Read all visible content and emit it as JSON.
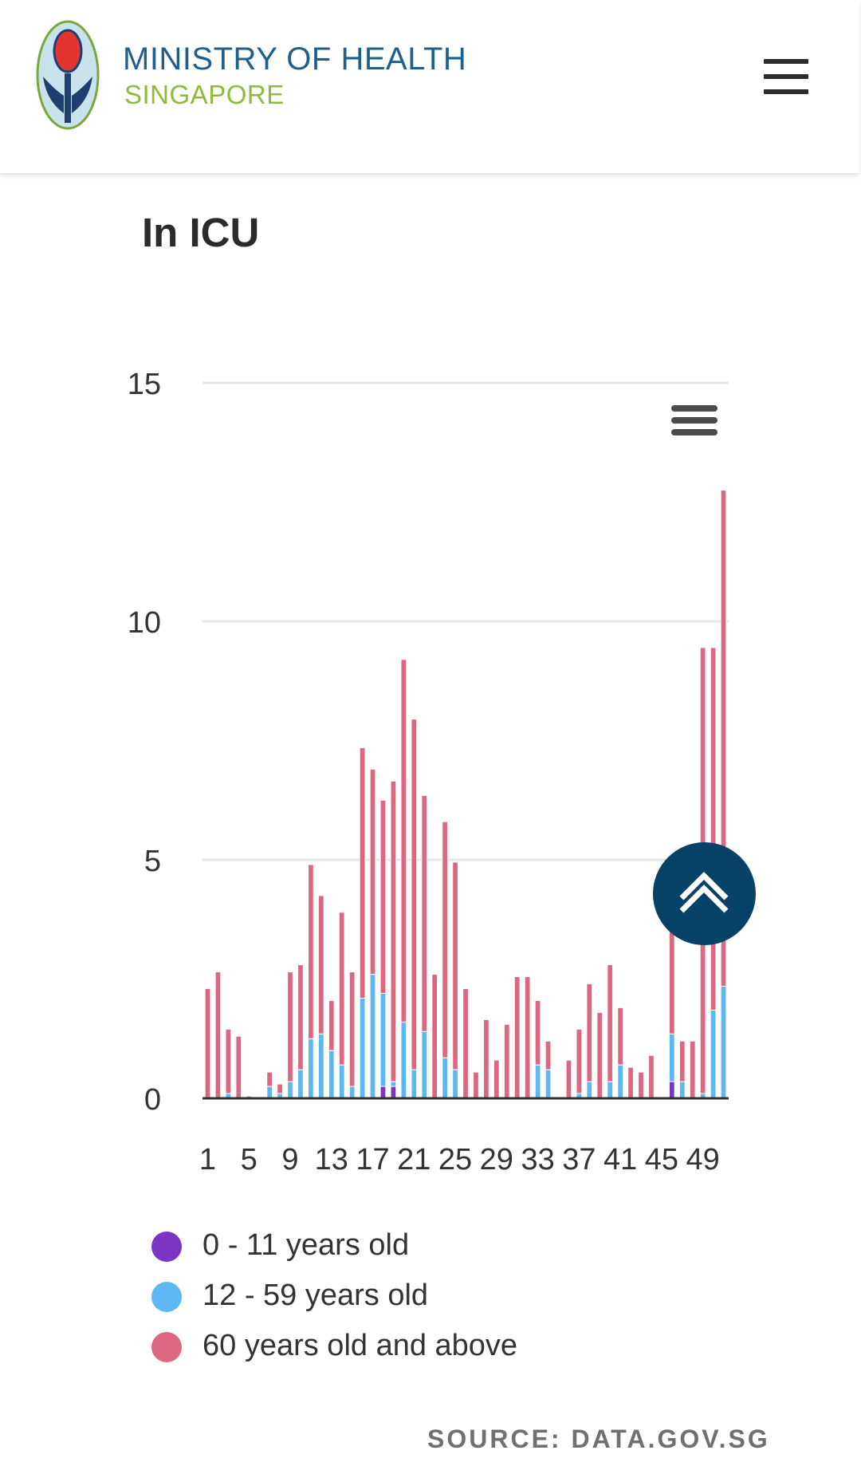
{
  "header": {
    "logo_line1": "MINISTRY OF HEALTH",
    "logo_line2": "SINGAPORE",
    "menu_icon": "hamburger-icon"
  },
  "page": {
    "title": "In ICU",
    "source": "SOURCE: DATA.GOV.SG"
  },
  "colors": {
    "series_0_11": "#7b35c2",
    "series_12_59": "#5cb8f2",
    "series_60_plus": "#dd6680",
    "gridline": "#e6e6e6",
    "axis": "#333333",
    "scroll_button": "#064166",
    "logo_blue": "#1f5f8b",
    "logo_green": "#8dbb3c"
  },
  "controls": {
    "chart_menu_icon": "chart-context-menu-icon",
    "scroll_top_icon": "double-chevron-up-icon"
  },
  "chart_data": {
    "type": "bar",
    "stacked": true,
    "title": "",
    "xlabel": "",
    "ylabel": "",
    "ylim": [
      0,
      15
    ],
    "y_ticks": [
      0,
      5,
      10,
      15
    ],
    "x_tick_labels": [
      "1",
      "5",
      "9",
      "13",
      "17",
      "21",
      "25",
      "29",
      "33",
      "37",
      "41",
      "45",
      "49"
    ],
    "x_tick_every": 4,
    "grid": true,
    "legend_position": "bottom-left",
    "categories": [
      "1",
      "2",
      "3",
      "4",
      "5",
      "6",
      "7",
      "8",
      "9",
      "10",
      "11",
      "12",
      "13",
      "14",
      "15",
      "16",
      "17",
      "18",
      "19",
      "20",
      "21",
      "22",
      "23",
      "24",
      "25",
      "26",
      "27",
      "28",
      "29",
      "30",
      "31",
      "32",
      "33",
      "34",
      "35",
      "36",
      "37",
      "38",
      "39",
      "40",
      "41",
      "42",
      "43",
      "44",
      "45",
      "46",
      "47",
      "48",
      "49",
      "50",
      "51"
    ],
    "series": [
      {
        "name": "0 - 11 years old",
        "values": [
          0,
          0,
          0,
          0,
          0,
          0,
          0,
          0,
          0,
          0,
          0,
          0,
          0,
          0,
          0,
          0,
          0,
          0.25,
          0.25,
          0,
          0,
          0,
          0,
          0,
          0,
          0,
          0,
          0,
          0,
          0,
          0,
          0,
          0,
          0,
          0,
          0,
          0,
          0,
          0,
          0,
          0,
          0,
          0,
          0,
          0,
          0.35,
          0,
          0,
          0,
          0,
          0
        ]
      },
      {
        "name": "12 - 59 years old",
        "values": [
          0,
          0,
          0.1,
          0,
          0.05,
          0,
          0.25,
          0.1,
          0.35,
          0.6,
          1.25,
          1.35,
          1.0,
          0.7,
          0.25,
          2.1,
          2.6,
          1.95,
          0.1,
          1.6,
          0.6,
          1.4,
          0,
          0.85,
          0.6,
          0,
          0,
          0,
          0,
          0,
          0,
          0,
          0.7,
          0.6,
          0,
          0,
          0.1,
          0.35,
          0,
          0.35,
          0.7,
          0,
          0,
          0,
          0,
          1.0,
          0.35,
          0,
          0.1,
          1.85,
          2.35
        ]
      },
      {
        "name": "60 years old and above",
        "values": [
          2.3,
          2.65,
          1.35,
          1.3,
          0,
          0,
          0.3,
          0.2,
          2.3,
          2.2,
          3.65,
          2.9,
          1.05,
          3.2,
          2.4,
          5.25,
          4.3,
          4.05,
          6.3,
          7.6,
          7.35,
          4.95,
          2.6,
          4.95,
          4.35,
          2.3,
          0.55,
          1.65,
          0.8,
          1.55,
          2.55,
          2.55,
          1.35,
          0.6,
          0,
          0.8,
          1.35,
          2.05,
          1.8,
          2.45,
          1.2,
          0.65,
          0.55,
          0.9,
          0,
          2.3,
          0.85,
          1.2,
          9.35,
          7.6,
          10.4
        ]
      }
    ]
  },
  "legend": {
    "items": [
      {
        "label": "0 - 11 years old",
        "color": "#7b35c2"
      },
      {
        "label": "12 - 59 years old",
        "color": "#5cb8f2"
      },
      {
        "label": "60 years old and above",
        "color": "#dd6680"
      }
    ]
  }
}
